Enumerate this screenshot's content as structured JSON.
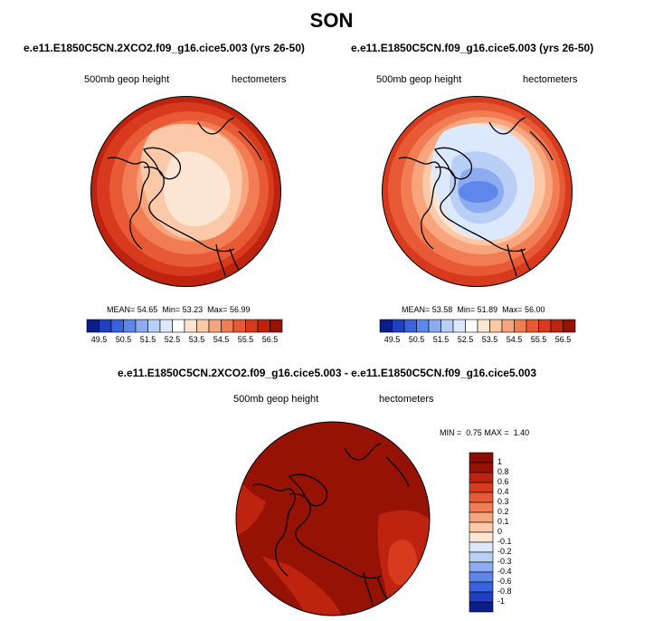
{
  "figure_title": "SON",
  "panels": [
    {
      "case": "e.e11.E1850C5CN.2XCO2.f09_g16.cice5.003 (yrs 26-50)",
      "variable": "500mb geop height",
      "units": "hectometers",
      "stats": {
        "mean_label": "MEAN=",
        "mean": "54.65",
        "min_label": "Min=",
        "min": "53.23",
        "max_label": "Max=",
        "max": "56.99"
      },
      "colorbar_ticks": [
        "49.5",
        "50.5",
        "51.5",
        "52.5",
        "53.5",
        "54.5",
        "55.5",
        "56.5"
      ]
    },
    {
      "case": "e.e11.E1850C5CN.f09_g16.cice5.003 (yrs 26-50)",
      "variable": "500mb geop height",
      "units": "hectometers",
      "stats": {
        "mean_label": "MEAN=",
        "mean": "53.58",
        "min_label": "Min=",
        "min": "51.89",
        "max_label": "Max=",
        "max": "56.00"
      },
      "colorbar_ticks": [
        "49.5",
        "50.5",
        "51.5",
        "52.5",
        "53.5",
        "54.5",
        "55.5",
        "56.5"
      ]
    }
  ],
  "difference": {
    "case": "e.e11.E1850C5CN.2XCO2.f09_g16.cice5.003 - e.e11.E1850C5CN.f09_g16.cice5.003",
    "variable": "500mb geop height",
    "units": "hectometers",
    "stats": {
      "min_label": "MIN =",
      "min": "0.75",
      "max_label": "MAX =",
      "max": "1.40"
    },
    "colorbar_ticks": [
      "1",
      "0.8",
      "0.6",
      "0.4",
      "0.3",
      "0.2",
      "0.1",
      "0",
      "-0.1",
      "-0.2",
      "-0.3",
      "-0.4",
      "-0.6",
      "-0.8",
      "-1"
    ]
  },
  "colors": {
    "abs_scale": [
      "#0a1e8a",
      "#1f3fc4",
      "#3a62e0",
      "#5f86ea",
      "#8cabf0",
      "#b9cff6",
      "#dce8fb",
      "#ffffff",
      "#fde5d4",
      "#fbc8a8",
      "#f8a47c",
      "#f27d54",
      "#e85a35",
      "#d83a1e",
      "#be2310",
      "#951205"
    ],
    "diff_scale": [
      "#0a1e8a",
      "#1f3fc4",
      "#3a62e0",
      "#5f86ea",
      "#8cabf0",
      "#b9cff6",
      "#dce8fb",
      "#fde5d4",
      "#fbc8a8",
      "#f8a47c",
      "#f27d54",
      "#e85a35",
      "#d83a1e",
      "#be2310",
      "#951205",
      "#8b0c02"
    ]
  }
}
